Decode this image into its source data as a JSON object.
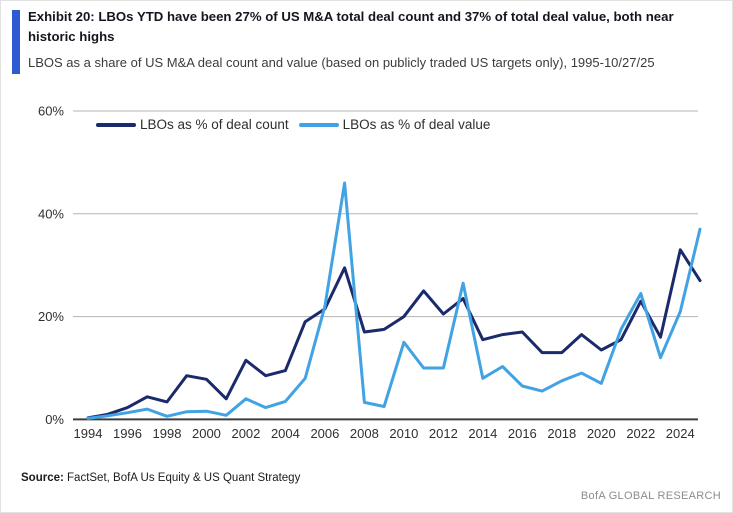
{
  "header": {
    "title": "Exhibit 20: LBOs YTD have been 27% of US M&A total deal count and 37% of total deal value, both near historic highs",
    "subtitle": "LBOS as a share of US M&A deal count and value (based on publicly traded US targets only), 1995-10/27/25",
    "accent_color": "#2d5bd1"
  },
  "chart_data": {
    "type": "line",
    "x": [
      1994,
      1995,
      1996,
      1997,
      1998,
      1999,
      2000,
      2001,
      2002,
      2003,
      2004,
      2005,
      2006,
      2007,
      2008,
      2009,
      2010,
      2011,
      2012,
      2013,
      2014,
      2015,
      2016,
      2017,
      2018,
      2019,
      2020,
      2021,
      2022,
      2023,
      2024,
      2025
    ],
    "series": [
      {
        "name": "LBOs as % of deal count",
        "color": "#1b2a6b",
        "values": [
          0.3,
          1,
          2.3,
          4.4,
          3.4,
          8.5,
          7.8,
          4,
          11.5,
          8.5,
          9.5,
          19,
          21.5,
          29.5,
          17,
          17.5,
          20,
          25,
          20.5,
          23.5,
          15.5,
          16.5,
          17,
          13,
          13,
          16.5,
          13.5,
          15.5,
          23,
          16,
          33,
          27
        ]
      },
      {
        "name": "LBOs as % of deal value",
        "color": "#41a3e3",
        "values": [
          0.2,
          0.7,
          1.3,
          2,
          0.6,
          1.5,
          1.6,
          0.8,
          4,
          2.3,
          3.5,
          8,
          22,
          46,
          3.3,
          2.5,
          15,
          10,
          10,
          26.5,
          8,
          10.3,
          6.5,
          5.5,
          7.5,
          9,
          7,
          17.5,
          24.5,
          12,
          21,
          37
        ]
      }
    ],
    "ylim": [
      0,
      60
    ],
    "y_ticks": [
      0,
      20,
      40,
      60
    ],
    "y_tick_suffix": "%",
    "x_ticks": [
      1994,
      1996,
      1998,
      2000,
      2002,
      2004,
      2006,
      2008,
      2010,
      2012,
      2014,
      2016,
      2018,
      2020,
      2022,
      2024
    ],
    "grid": true,
    "legend_position": "top",
    "grid_color": "#b3b3b3",
    "axis_color": "#3d3d3d"
  },
  "source": {
    "label": "Source:",
    "text": " FactSet, BofA Us Equity & US Quant Strategy"
  },
  "brand": "BofA GLOBAL RESEARCH"
}
